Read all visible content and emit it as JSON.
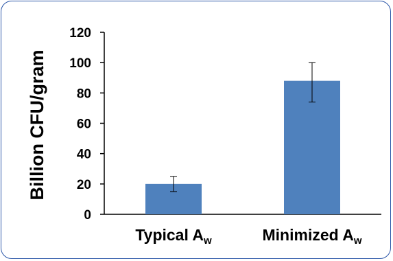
{
  "chart_data": {
    "type": "bar",
    "categories": [
      {
        "main": "Typical A",
        "sub": "w"
      },
      {
        "main": "Minimized A",
        "sub": "w"
      }
    ],
    "values": [
      20,
      88
    ],
    "error_low": [
      15,
      74
    ],
    "error_high": [
      25,
      100
    ],
    "ylabel": "Billion CFU/gram",
    "ylim": [
      0,
      120
    ],
    "yticks": [
      0,
      20,
      40,
      60,
      80,
      100,
      120
    ],
    "grid": false,
    "bar_color": "#4f81bd",
    "frame_color": "#2b56a8"
  }
}
